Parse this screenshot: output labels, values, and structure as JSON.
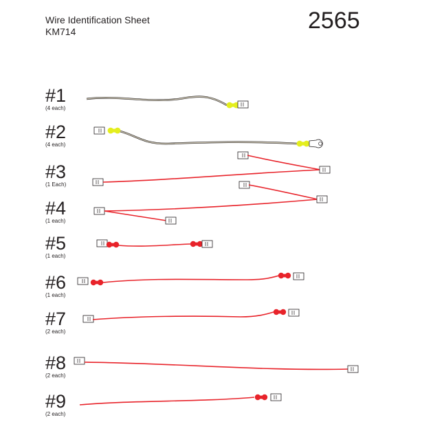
{
  "header": {
    "title": "Wire Identification Sheet",
    "part_number": "KM714",
    "sheet_number": "2565"
  },
  "wires": [
    {
      "label": "#1",
      "quantity": "(4 each)",
      "color": "#d9d2bd",
      "connector": "yellow"
    },
    {
      "label": "#2",
      "quantity": "(4 each)",
      "color": "#d9d2bd",
      "connector": "yellow"
    },
    {
      "label": "#3",
      "quantity": "(1 Each)",
      "color": "#e8232a",
      "connector": "none"
    },
    {
      "label": "#4",
      "quantity": "(1 each)",
      "color": "#e8232a",
      "connector": "none"
    },
    {
      "label": "#5",
      "quantity": "(1 each)",
      "color": "#e8232a",
      "connector": "red"
    },
    {
      "label": "#6",
      "quantity": "(1 each)",
      "color": "#e8232a",
      "connector": "red"
    },
    {
      "label": "#7",
      "quantity": "(2 each)",
      "color": "#e8232a",
      "connector": "red"
    },
    {
      "label": "#8",
      "quantity": "(2 each)",
      "color": "#e8232a",
      "connector": "none"
    },
    {
      "label": "#9",
      "quantity": "(2 each)",
      "color": "#e8232a",
      "connector": "red"
    }
  ]
}
